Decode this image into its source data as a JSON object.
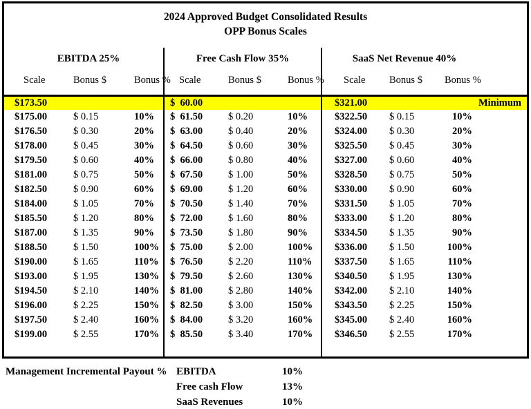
{
  "title": {
    "line1": "2024 Approved Budget Consolidated Results",
    "line2": "OPP Bonus Scales"
  },
  "colors": {
    "highlight": "#FFFF00",
    "border": "#000000",
    "background": "#FFFFFF",
    "text": "#000000"
  },
  "sections": [
    {
      "title": "EBITDA 25%",
      "columns": [
        "Scale",
        "Bonus $",
        "Bonus %"
      ],
      "minimum_scale": "$173.50",
      "rows": [
        [
          "$175.00",
          "$ 0.15",
          "10%"
        ],
        [
          "$176.50",
          "$ 0.30",
          "20%"
        ],
        [
          "$178.00",
          "$ 0.45",
          "30%"
        ],
        [
          "$179.50",
          "$ 0.60",
          "40%"
        ],
        [
          "$181.00",
          "$ 0.75",
          "50%"
        ],
        [
          "$182.50",
          "$ 0.90",
          "60%"
        ],
        [
          "$184.00",
          "$ 1.05",
          "70%"
        ],
        [
          "$185.50",
          "$ 1.20",
          "80%"
        ],
        [
          "$187.00",
          "$ 1.35",
          "90%"
        ],
        [
          "$188.50",
          "$ 1.50",
          "100%"
        ],
        [
          "$190.00",
          "$ 1.65",
          "110%"
        ],
        [
          "$193.00",
          "$ 1.95",
          "130%"
        ],
        [
          "$194.50",
          "$ 2.10",
          "140%"
        ],
        [
          "$196.00",
          "$ 2.25",
          "150%"
        ],
        [
          "$197.50",
          "$ 2.40",
          "160%"
        ],
        [
          "$199.00",
          "$ 2.55",
          "170%"
        ]
      ]
    },
    {
      "title": "Free Cash Flow 35%",
      "columns": [
        "Scale",
        "Bonus $",
        "Bonus %"
      ],
      "minimum_scale": "$  60.00",
      "rows": [
        [
          "$  61.50",
          "$ 0.20",
          "10%"
        ],
        [
          "$  63.00",
          "$ 0.40",
          "20%"
        ],
        [
          "$  64.50",
          "$ 0.60",
          "30%"
        ],
        [
          "$  66.00",
          "$ 0.80",
          "40%"
        ],
        [
          "$  67.50",
          "$ 1.00",
          "50%"
        ],
        [
          "$  69.00",
          "$ 1.20",
          "60%"
        ],
        [
          "$  70.50",
          "$ 1.40",
          "70%"
        ],
        [
          "$  72.00",
          "$ 1.60",
          "80%"
        ],
        [
          "$  73.50",
          "$ 1.80",
          "90%"
        ],
        [
          "$  75.00",
          "$ 2.00",
          "100%"
        ],
        [
          "$  76.50",
          "$ 2.20",
          "110%"
        ],
        [
          "$  79.50",
          "$ 2.60",
          "130%"
        ],
        [
          "$  81.00",
          "$ 2.80",
          "140%"
        ],
        [
          "$  82.50",
          "$ 3.00",
          "150%"
        ],
        [
          "$  84.00",
          "$ 3.20",
          "160%"
        ],
        [
          "$  85.50",
          "$ 3.40",
          "170%"
        ]
      ]
    },
    {
      "title": "SaaS Net Revenue 40%",
      "columns": [
        "Scale",
        "Bonus $",
        "Bonus %"
      ],
      "minimum_scale": "$321.00",
      "minimum_note": "Minimum",
      "rows": [
        [
          "$322.50",
          "$ 0.15",
          "10%"
        ],
        [
          "$324.00",
          "$ 0.30",
          "20%"
        ],
        [
          "$325.50",
          "$ 0.45",
          "30%"
        ],
        [
          "$327.00",
          "$ 0.60",
          "40%"
        ],
        [
          "$328.50",
          "$ 0.75",
          "50%"
        ],
        [
          "$330.00",
          "$ 0.90",
          "60%"
        ],
        [
          "$331.50",
          "$ 1.05",
          "70%"
        ],
        [
          "$333.00",
          "$ 1.20",
          "80%"
        ],
        [
          "$334.50",
          "$ 1.35",
          "90%"
        ],
        [
          "$336.00",
          "$ 1.50",
          "100%"
        ],
        [
          "$337.50",
          "$ 1.65",
          "110%"
        ],
        [
          "$340.50",
          "$ 1.95",
          "130%"
        ],
        [
          "$342.00",
          "$ 2.10",
          "140%"
        ],
        [
          "$343.50",
          "$ 2.25",
          "150%"
        ],
        [
          "$345.00",
          "$ 2.40",
          "160%"
        ],
        [
          "$346.50",
          "$ 2.55",
          "170%"
        ]
      ]
    }
  ],
  "footer": {
    "label": "Management Incremental Payout %",
    "items": [
      {
        "name": "EBITDA",
        "value": "10%"
      },
      {
        "name": "Free cash Flow",
        "value": "13%"
      },
      {
        "name": "SaaS Revenues",
        "value": "10%"
      }
    ]
  }
}
